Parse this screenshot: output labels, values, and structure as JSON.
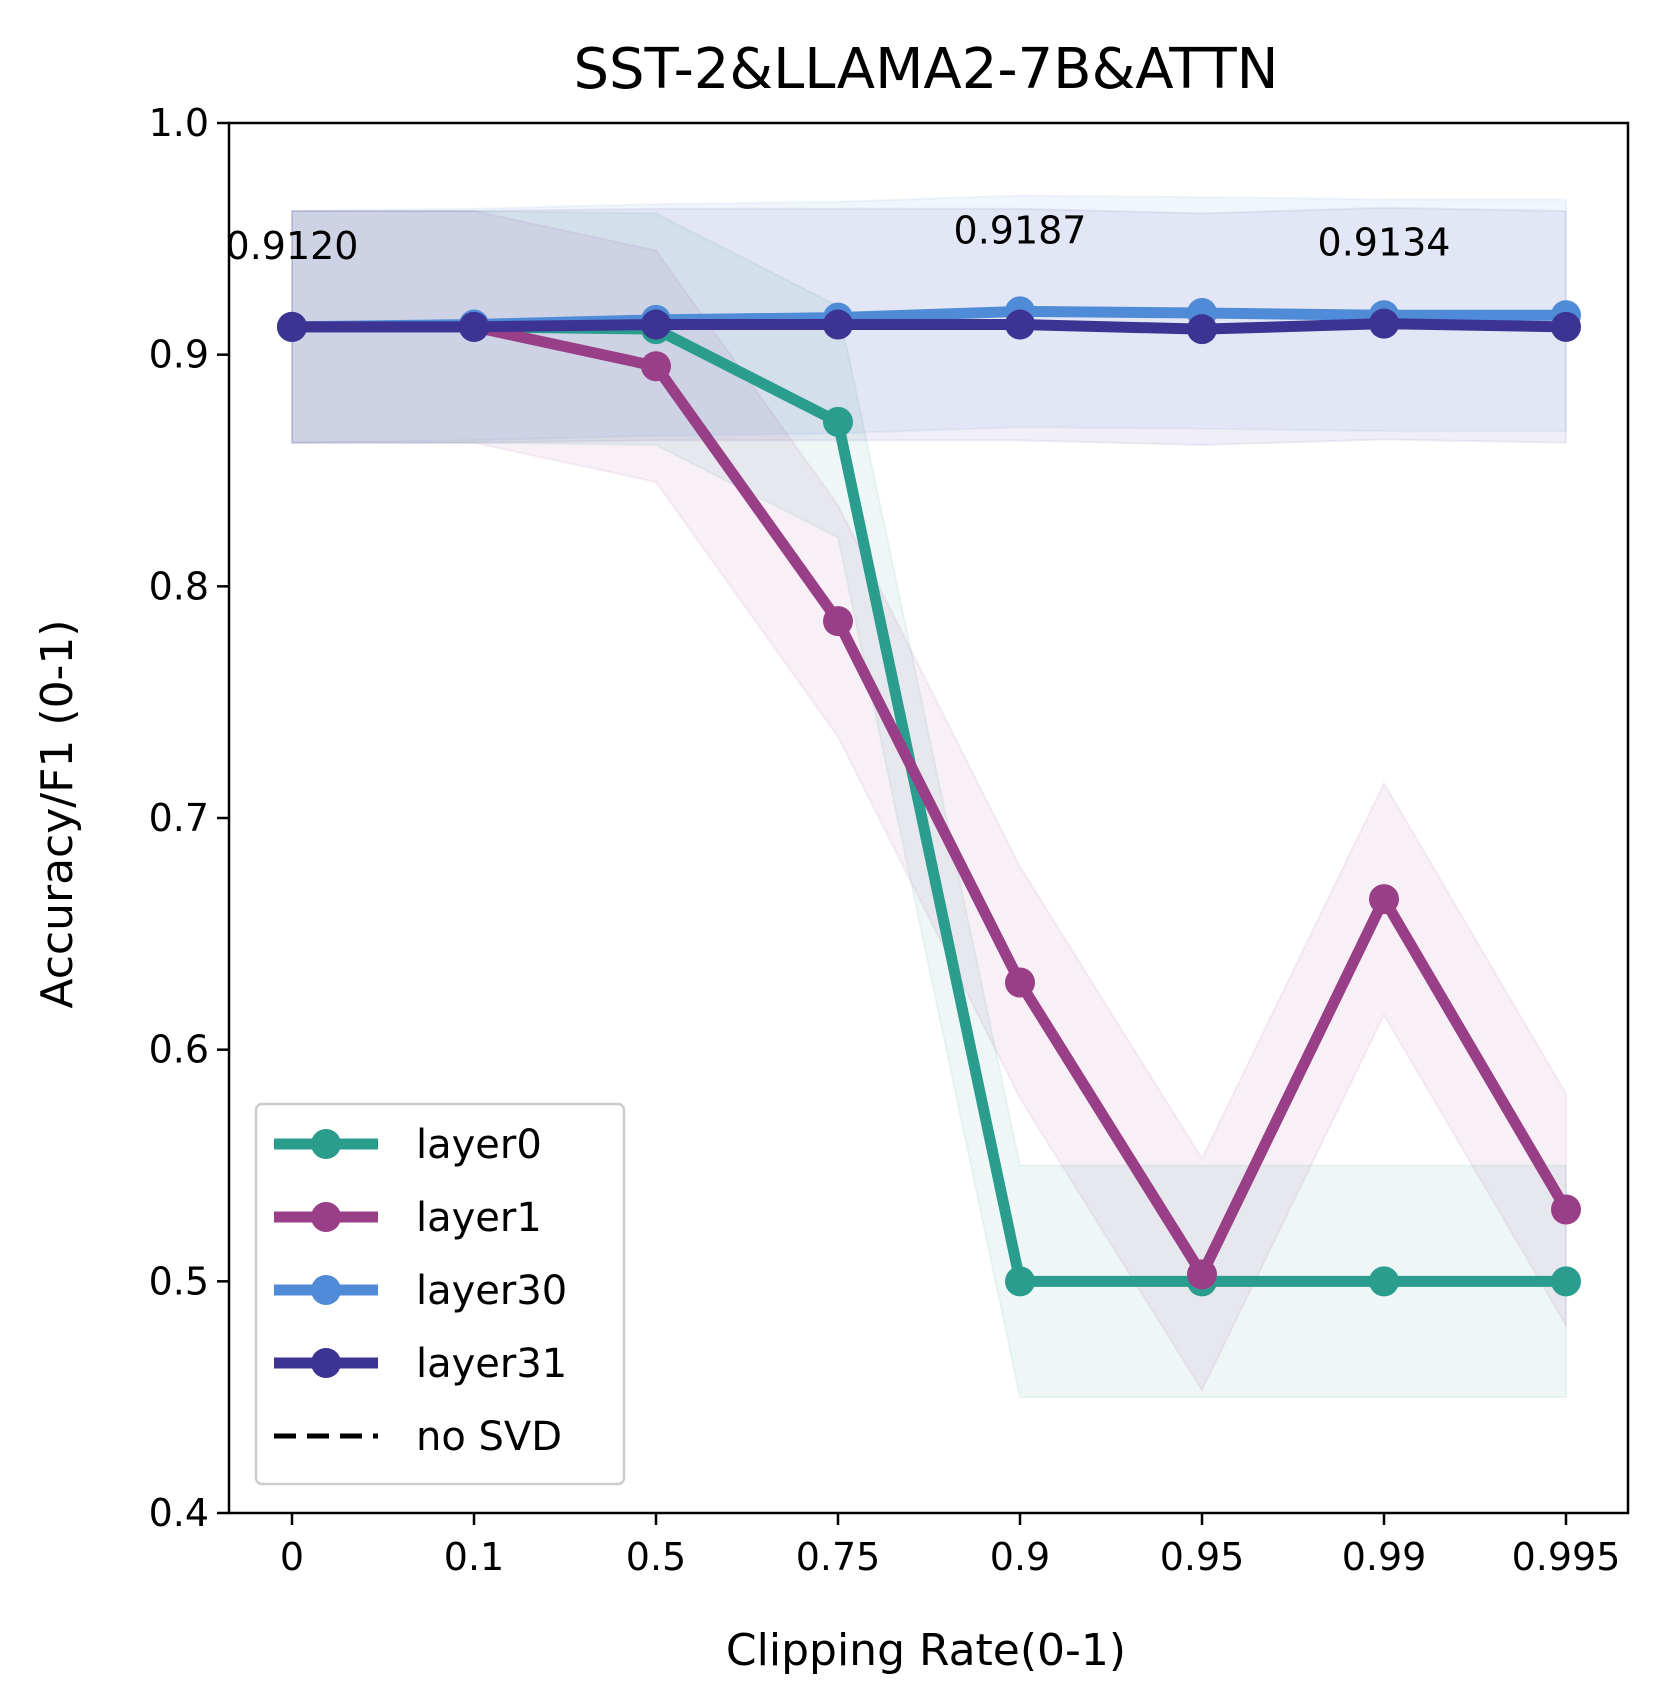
{
  "chart_data": {
    "type": "line",
    "title": "SST-2&LLAMA2-7B&ATTN",
    "xlabel": "Clipping Rate(0-1)",
    "ylabel": "Accuracy/F1 (0-1)",
    "categories": [
      "0",
      "0.1",
      "0.5",
      "0.75",
      "0.9",
      "0.95",
      "0.99",
      "0.995"
    ],
    "ylim": [
      0.4,
      1.0
    ],
    "yticks": [
      "0.4",
      "0.5",
      "0.6",
      "0.7",
      "0.8",
      "0.9",
      "1.0"
    ],
    "grid": false,
    "legend_position": "lower-left",
    "series": [
      {
        "name": "layer0",
        "color": "#2a9d8f",
        "values": [
          0.912,
          0.912,
          0.911,
          0.871,
          0.5,
          0.5,
          0.5,
          0.5
        ],
        "band": 0.05
      },
      {
        "name": "layer1",
        "color": "#993f87",
        "values": [
          0.912,
          0.912,
          0.895,
          0.785,
          0.629,
          0.503,
          0.665,
          0.531
        ],
        "band": 0.05
      },
      {
        "name": "layer30",
        "color": "#4f8bd6",
        "values": [
          0.912,
          0.913,
          0.915,
          0.916,
          0.9187,
          0.918,
          0.917,
          0.917
        ],
        "band": 0.05
      },
      {
        "name": "layer31",
        "color": "#3d3393",
        "values": [
          0.912,
          0.912,
          0.913,
          0.913,
          0.913,
          0.911,
          0.9134,
          0.912
        ],
        "band": 0.05
      }
    ],
    "reference": {
      "name": "no SVD",
      "value": 0.912,
      "color": "#000000",
      "style": "dashed"
    },
    "annotations": [
      {
        "text": "0.9120",
        "x_index": 0,
        "value": 0.912
      },
      {
        "text": "0.9187",
        "x_index": 4,
        "value": 0.9187
      },
      {
        "text": "0.9134",
        "x_index": 6,
        "value": 0.9134
      }
    ]
  }
}
